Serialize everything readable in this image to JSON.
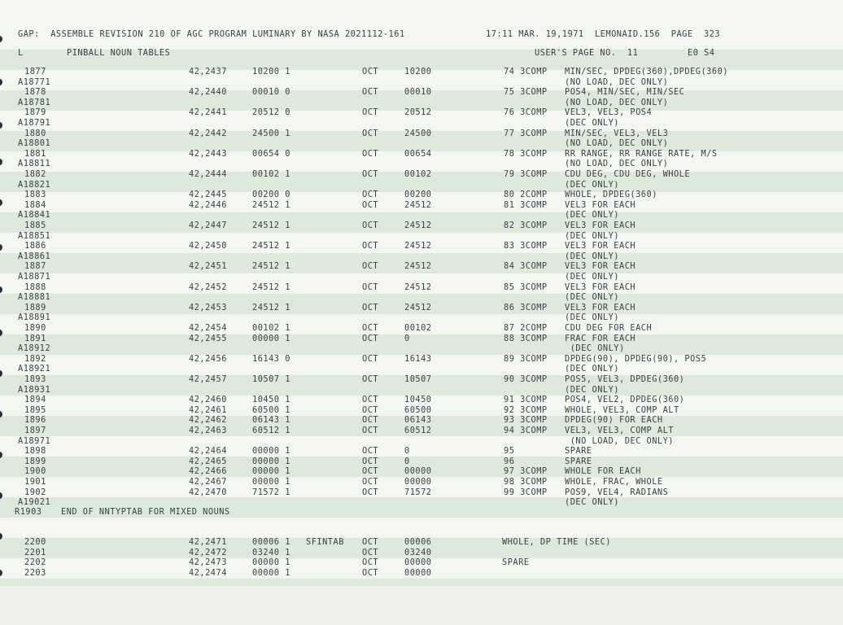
{
  "header": {
    "left": "GAP:  ASSEMBLE REVISION 210 OF AGC PROGRAM LUMINARY BY NASA 2021112-161",
    "right": "17:11 MAR. 19,1971  LEMONAID.156  PAGE  323"
  },
  "subheader": {
    "l": "L",
    "title": "PINBALL NOUN TABLES",
    "users_page": "USER'S PAGE NO.  11",
    "eo": "E0 S4"
  },
  "lines": [
    {
      "seq": "1877",
      "loc": "42,2437",
      "word": "10200 1",
      "tag": "",
      "op": "OCT",
      "val": "10200",
      "noun": "74 3COMP",
      "note": "MIN/SEC, DPDEG(360),DPDEG(360)"
    },
    {
      "seq": "A18771",
      "loc": "",
      "word": "",
      "tag": "",
      "op": "",
      "val": "",
      "noun": "",
      "note": "(NO LOAD, DEC ONLY)"
    },
    {
      "seq": "1878",
      "loc": "42,2440",
      "word": "00010 0",
      "tag": "",
      "op": "OCT",
      "val": "00010",
      "noun": "75 3COMP",
      "note": "POS4, MIN/SEC, MIN/SEC"
    },
    {
      "seq": "A18781",
      "loc": "",
      "word": "",
      "tag": "",
      "op": "",
      "val": "",
      "noun": "",
      "note": "(NO LOAD, DEC ONLY)"
    },
    {
      "seq": "1879",
      "loc": "42,2441",
      "word": "20512 0",
      "tag": "",
      "op": "OCT",
      "val": "20512",
      "noun": "76 3COMP",
      "note": "VEL3, VEL3, POS4"
    },
    {
      "seq": "A18791",
      "loc": "",
      "word": "",
      "tag": "",
      "op": "",
      "val": "",
      "noun": "",
      "note": "(DEC ONLY)"
    },
    {
      "seq": "1880",
      "loc": "42,2442",
      "word": "24500 1",
      "tag": "",
      "op": "OCT",
      "val": "24500",
      "noun": "77 3COMP",
      "note": "MIN/SEC, VEL3, VEL3"
    },
    {
      "seq": "A18801",
      "loc": "",
      "word": "",
      "tag": "",
      "op": "",
      "val": "",
      "noun": "",
      "note": "(NO LOAD, DEC ONLY)"
    },
    {
      "seq": "1881",
      "loc": "42,2443",
      "word": "00654 0",
      "tag": "",
      "op": "OCT",
      "val": "00654",
      "noun": "78 3COMP",
      "note": "RR RANGE, RR RANGE RATE, M/S"
    },
    {
      "seq": "A18811",
      "loc": "",
      "word": "",
      "tag": "",
      "op": "",
      "val": "",
      "noun": "",
      "note": "(NO LOAD, DEC ONLY)"
    },
    {
      "seq": "1882",
      "loc": "42,2444",
      "word": "00102 1",
      "tag": "",
      "op": "OCT",
      "val": "00102",
      "noun": "79 3COMP",
      "note": "CDU DEG, CDU DEG, WHOLE"
    },
    {
      "seq": "A18821",
      "loc": "",
      "word": "",
      "tag": "",
      "op": "",
      "val": "",
      "noun": "",
      "note": "(DEC ONLY)"
    },
    {
      "seq": "1883",
      "loc": "42,2445",
      "word": "00200 0",
      "tag": "",
      "op": "OCT",
      "val": "00200",
      "noun": "80 2COMP",
      "note": "WHOLE, DPDEG(360)"
    },
    {
      "seq": "1884",
      "loc": "42,2446",
      "word": "24512 1",
      "tag": "",
      "op": "OCT",
      "val": "24512",
      "noun": "81 3COMP",
      "note": "VEL3 FOR EACH"
    },
    {
      "seq": "A18841",
      "loc": "",
      "word": "",
      "tag": "",
      "op": "",
      "val": "",
      "noun": "",
      "note": "(DEC ONLY)"
    },
    {
      "seq": "1885",
      "loc": "42,2447",
      "word": "24512 1",
      "tag": "",
      "op": "OCT",
      "val": "24512",
      "noun": "82 3COMP",
      "note": "VEL3 FOR EACH"
    },
    {
      "seq": "A18851",
      "loc": "",
      "word": "",
      "tag": "",
      "op": "",
      "val": "",
      "noun": "",
      "note": "(DEC ONLY)"
    },
    {
      "seq": "1886",
      "loc": "42,2450",
      "word": "24512 1",
      "tag": "",
      "op": "OCT",
      "val": "24512",
      "noun": "83 3COMP",
      "note": "VEL3 FOR EACH"
    },
    {
      "seq": "A18861",
      "loc": "",
      "word": "",
      "tag": "",
      "op": "",
      "val": "",
      "noun": "",
      "note": "(DEC ONLY)"
    },
    {
      "seq": "1887",
      "loc": "42,2451",
      "word": "24512 1",
      "tag": "",
      "op": "OCT",
      "val": "24512",
      "noun": "84 3COMP",
      "note": "VEL3 FOR EACH"
    },
    {
      "seq": "A18871",
      "loc": "",
      "word": "",
      "tag": "",
      "op": "",
      "val": "",
      "noun": "",
      "note": "(DEC ONLY)"
    },
    {
      "seq": "1888",
      "loc": "42,2452",
      "word": "24512 1",
      "tag": "",
      "op": "OCT",
      "val": "24512",
      "noun": "85 3COMP",
      "note": "VEL3 FOR EACH"
    },
    {
      "seq": "A18881",
      "loc": "",
      "word": "",
      "tag": "",
      "op": "",
      "val": "",
      "noun": "",
      "note": "(DEC ONLY)"
    },
    {
      "seq": "1889",
      "loc": "42,2453",
      "word": "24512 1",
      "tag": "",
      "op": "OCT",
      "val": "24512",
      "noun": "86 3COMP",
      "note": "VEL3 FOR EACH"
    },
    {
      "seq": "A18891",
      "loc": "",
      "word": "",
      "tag": "",
      "op": "",
      "val": "",
      "noun": "",
      "note": "(DEC ONLY)"
    },
    {
      "seq": "1890",
      "loc": "42,2454",
      "word": "00102 1",
      "tag": "",
      "op": "OCT",
      "val": "00102",
      "noun": "87 2COMP",
      "note": "CDU DEG FOR EACH"
    },
    {
      "seq": "1891",
      "loc": "42,2455",
      "word": "00000 1",
      "tag": "",
      "op": "OCT",
      "val": "0",
      "noun": "88 3COMP",
      "note": "FRAC FOR EACH"
    },
    {
      "seq": "A18912",
      "loc": "",
      "word": "",
      "tag": "",
      "op": "",
      "val": "",
      "noun": "",
      "note": " (DEC ONLY)"
    },
    {
      "seq": "1892",
      "loc": "42,2456",
      "word": "16143 0",
      "tag": "",
      "op": "OCT",
      "val": "16143",
      "noun": "89 3COMP",
      "note": "DPDEG(90), DPDEG(90), POS5"
    },
    {
      "seq": "A18921",
      "loc": "",
      "word": "",
      "tag": "",
      "op": "",
      "val": "",
      "noun": "",
      "note": "(DEC ONLY)"
    },
    {
      "seq": "1893",
      "loc": "42,2457",
      "word": "10507 1",
      "tag": "",
      "op": "OCT",
      "val": "10507",
      "noun": "90 3COMP",
      "note": "POS5, VEL3, DPDEG(360)"
    },
    {
      "seq": "A18931",
      "loc": "",
      "word": "",
      "tag": "",
      "op": "",
      "val": "",
      "noun": "",
      "note": "(DEC ONLY)"
    },
    {
      "seq": "1894",
      "loc": "42,2460",
      "word": "10450 1",
      "tag": "",
      "op": "OCT",
      "val": "10450",
      "noun": "91 3COMP",
      "note": "POS4, VEL2, DPDEG(360)"
    },
    {
      "seq": "1895",
      "loc": "42,2461",
      "word": "60500 1",
      "tag": "",
      "op": "OCT",
      "val": "60500",
      "noun": "92 3COMP",
      "note": "WHOLE, VEL3, COMP ALT"
    },
    {
      "seq": "1896",
      "loc": "42,2462",
      "word": "06143 1",
      "tag": "",
      "op": "OCT",
      "val": "06143",
      "noun": "93 3COMP",
      "note": "DPDEG(90) FOR EACH"
    },
    {
      "seq": "1897",
      "loc": "42,2463",
      "word": "60512 1",
      "tag": "",
      "op": "OCT",
      "val": "60512",
      "noun": "94 3COMP",
      "note": "VEL3, VEL3, COMP ALT"
    },
    {
      "seq": "A18971",
      "loc": "",
      "word": "",
      "tag": "",
      "op": "",
      "val": "",
      "noun": "",
      "note": " (NO LOAD, DEC ONLY)"
    },
    {
      "seq": "1898",
      "loc": "42,2464",
      "word": "00000 1",
      "tag": "",
      "op": "OCT",
      "val": "0",
      "noun": "95",
      "note": "SPARE"
    },
    {
      "seq": "1899",
      "loc": "42,2465",
      "word": "00000 1",
      "tag": "",
      "op": "OCT",
      "val": "0",
      "noun": "96",
      "note": "SPARE"
    },
    {
      "seq": "1900",
      "loc": "42,2466",
      "word": "00000 1",
      "tag": "",
      "op": "OCT",
      "val": "00000",
      "noun": "97 3COMP",
      "note": "WHOLE FOR EACH"
    },
    {
      "seq": "1901",
      "loc": "42,2467",
      "word": "00000 1",
      "tag": "",
      "op": "OCT",
      "val": "00000",
      "noun": "98 3COMP",
      "note": "WHOLE, FRAC, WHOLE"
    },
    {
      "seq": "1902",
      "loc": "42,2470",
      "word": "71572 1",
      "tag": "",
      "op": "OCT",
      "val": "71572",
      "noun": "99 3COMP",
      "note": "POS9, VEL4, RADIANS"
    },
    {
      "seq": "A19021",
      "loc": "",
      "word": "",
      "tag": "",
      "op": "",
      "val": "",
      "noun": "",
      "note": "(DEC ONLY)"
    }
  ],
  "comment_line": {
    "seq": "R1903",
    "text": "END OF NNTYPTAB FOR MIXED NOUNS"
  },
  "lines2": [
    {
      "seq": "2200",
      "loc": "42,2471",
      "word": "00006 1",
      "tag": "SFINTAB",
      "op": "OCT",
      "val": "00006",
      "note": "WHOLE, DP TIME (SEC)"
    },
    {
      "seq": "2201",
      "loc": "42,2472",
      "word": "03240 1",
      "tag": "",
      "op": "OCT",
      "val": "03240",
      "note": ""
    },
    {
      "seq": "2202",
      "loc": "42,2473",
      "word": "00000 1",
      "tag": "",
      "op": "OCT",
      "val": "00000",
      "note": "SPARE"
    },
    {
      "seq": "2203",
      "loc": "42,2474",
      "word": "00000 1",
      "tag": "",
      "op": "OCT",
      "val": "00000",
      "note": ""
    }
  ]
}
